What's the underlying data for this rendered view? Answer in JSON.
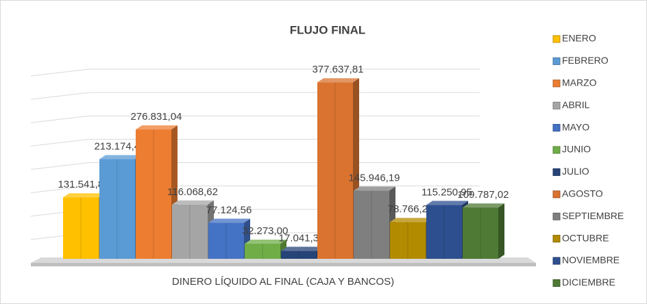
{
  "chart_data": {
    "type": "bar3d",
    "title": "FLUJO FINAL",
    "categories": [
      "DINERO LÍQUIDO AL FINAL (CAJA Y BANCOS)"
    ],
    "ylim": [
      0,
      400000
    ],
    "grid": true,
    "legend": "right",
    "series": [
      {
        "name": "ENERO",
        "color": "#ffc000",
        "values": [
          131541.82
        ],
        "value_labels": [
          "131.541,82"
        ]
      },
      {
        "name": "FEBRERO",
        "color": "#5b9bd5",
        "values": [
          213174.49
        ],
        "value_labels": [
          "213.174,49"
        ]
      },
      {
        "name": "MARZO",
        "color": "#ed7d31",
        "values": [
          276831.04
        ],
        "value_labels": [
          "276.831,04"
        ]
      },
      {
        "name": "ABRIL",
        "color": "#a5a5a5",
        "values": [
          116068.62
        ],
        "value_labels": [
          "116.068,62"
        ]
      },
      {
        "name": "MAYO",
        "color": "#4472c4",
        "values": [
          77124.56
        ],
        "value_labels": [
          "77.124,56"
        ]
      },
      {
        "name": "JUNIO",
        "color": "#70ad47",
        "values": [
          32273.0
        ],
        "value_labels": [
          "32.273,00"
        ]
      },
      {
        "name": "JULIO",
        "color": "#264478",
        "values": [
          17041.3
        ],
        "value_labels": [
          "17.041,30"
        ]
      },
      {
        "name": "AGOSTO",
        "color": "#d9732f",
        "values": [
          377637.81
        ],
        "value_labels": [
          "377.637,81"
        ]
      },
      {
        "name": "SEPTIEMBRE",
        "color": "#7f7f7f",
        "values": [
          145946.19
        ],
        "value_labels": [
          "145.946,19"
        ]
      },
      {
        "name": "OCTUBRE",
        "color": "#b38b00",
        "values": [
          78766.22
        ],
        "value_labels": [
          "78.766,22"
        ]
      },
      {
        "name": "NOVIEMBRE",
        "color": "#2e4f8f",
        "values": [
          115250.95
        ],
        "value_labels": [
          "115.250,95"
        ]
      },
      {
        "name": "DICIEMBRE",
        "color": "#4f7a35",
        "values": [
          109787.02
        ],
        "value_labels": [
          "109.787,02"
        ]
      }
    ]
  }
}
